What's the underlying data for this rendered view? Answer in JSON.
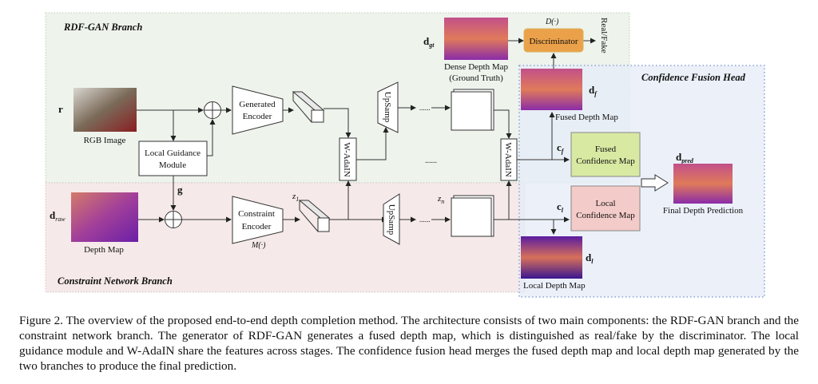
{
  "regions": {
    "rdf_gan": "RDF-GAN Branch",
    "constraint": "Constraint Network Branch",
    "fusion": "Confidence Fusion Head"
  },
  "symbols": {
    "r": "r",
    "d_raw": "d",
    "d_raw_sub": "raw",
    "g": "g",
    "z1": "z",
    "z1_sub": "1",
    "zn": "z",
    "zn_sub": "n",
    "d_gt": "d",
    "d_gt_sub": "gt",
    "d_f": "d",
    "d_f_sub": "f",
    "c_f": "c",
    "c_f_sub": "f",
    "c_l": "c",
    "c_l_sub": "l",
    "d_l": "d",
    "d_l_sub": "l",
    "d_pred": "d",
    "d_pred_sub": "pred",
    "D": "D(·)",
    "M": "M(·)"
  },
  "labels": {
    "rgb_image": "RGB Image",
    "depth_map": "Depth Map",
    "local_guidance_1": "Local Guidance",
    "local_guidance_2": "Module",
    "gen_enc_1": "Generated",
    "gen_enc_2": "Encoder",
    "con_enc_1": "Constraint",
    "con_enc_2": "Encoder",
    "wadain": "W-AdaIN",
    "upsamp": "UpSamp",
    "dense_1": "Dense Depth Map",
    "dense_2": "(Ground Truth)",
    "discriminator": "Discriminator",
    "real_fake": "Real/Fake",
    "fused_depth": "Fused Depth Map",
    "fused_conf_1": "Fused",
    "fused_conf_2": "Confidence Map",
    "local_conf_1": "Local",
    "local_conf_2": "Confidence Map",
    "local_depth": "Local Depth Map",
    "final": "Final Depth Prediction",
    "ellipsis": "......"
  },
  "colors": {
    "rdf_bg": "#eef3ec",
    "constraint_bg": "#f6e9e9",
    "fusion_bg": "#e6ecf8",
    "discriminator": "#eba14a",
    "fused_conf": "#d8e9a2",
    "local_conf": "#f3cbc8"
  },
  "caption": "Figure 2. The overview of the proposed end-to-end depth completion method. The architecture consists of two main components: the RDF-GAN branch and the constraint network branch. The generator of RDF-GAN generates a fused depth map, which is distinguished as real/fake by the discriminator. The local guidance module and W-AdaIN share the features across stages. The confidence fusion head merges the fused depth map and local depth map generated by the two branches to produce the final prediction."
}
